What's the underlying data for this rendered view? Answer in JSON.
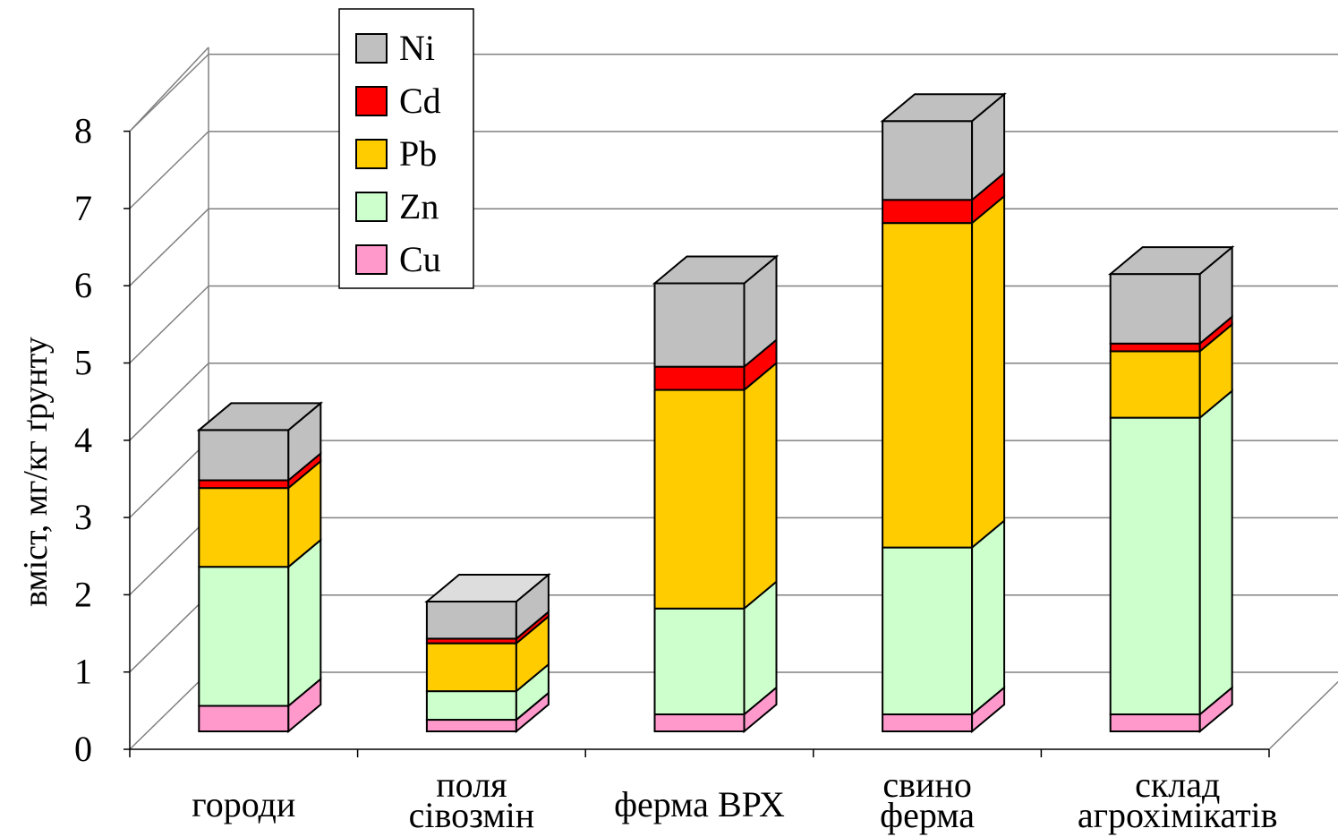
{
  "chart_data": {
    "type": "bar",
    "stacked": true,
    "three_d": true,
    "title": "",
    "xlabel": "",
    "ylabel": "вміст, мг/кг ґрунту",
    "ylim": [
      0,
      8
    ],
    "yticks": [
      "0",
      "1",
      "2",
      "3",
      "4",
      "5",
      "6",
      "7",
      "8"
    ],
    "grid": true,
    "legend_position": "top-left",
    "categories": [
      [
        "городи"
      ],
      [
        "поля",
        "сівозмін"
      ],
      [
        "ферма ВРХ"
      ],
      [
        "свино",
        "ферма"
      ],
      [
        "склад",
        "агрохімікатів"
      ]
    ],
    "series": [
      {
        "name": "Cu",
        "color": "#ff99cc",
        "values": [
          0.33,
          0.15,
          0.22,
          0.22,
          0.22
        ]
      },
      {
        "name": "Zn",
        "color": "#ccffcc",
        "values": [
          1.8,
          0.37,
          1.37,
          2.16,
          3.84
        ]
      },
      {
        "name": "Pb",
        "color": "#ffcc00",
        "values": [
          1.02,
          0.62,
          2.83,
          4.2,
          0.86
        ]
      },
      {
        "name": "Cd",
        "color": "#ff0000",
        "values": [
          0.1,
          0.06,
          0.3,
          0.3,
          0.1
        ]
      },
      {
        "name": "Ni",
        "color": "#c0c0c0",
        "values": [
          0.65,
          0.48,
          1.08,
          1.02,
          0.9
        ]
      }
    ]
  }
}
